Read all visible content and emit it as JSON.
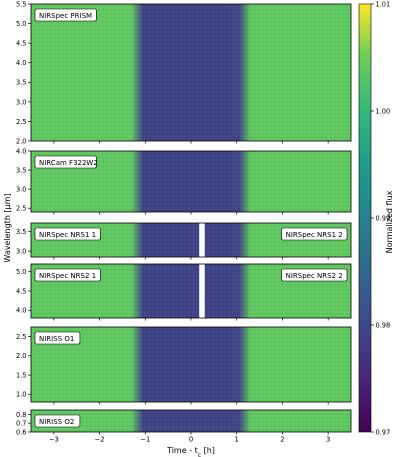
{
  "chart_data": {
    "type": "heatmap",
    "xlabel": "Time - t",
    "xlabel_sub": "c",
    "xlabel_unit": " [h]",
    "ylabel": "Wavelength [μm]",
    "xlim": [
      -3.5,
      3.5
    ],
    "x_ticks": [
      -3,
      -2,
      -1,
      0,
      1,
      2,
      3
    ],
    "transit": {
      "ingress": [
        -1.3,
        -1.05
      ],
      "egress": [
        1.05,
        1.3
      ]
    },
    "colorbar": {
      "label": "Normalized flux",
      "colormap": "viridis",
      "range": [
        0.97,
        1.01
      ],
      "ticks": [
        0.97,
        0.98,
        0.99,
        1.0,
        1.01
      ],
      "tick_labels": [
        "0.97",
        "0.98",
        "0.99",
        "1.00",
        "1.01"
      ],
      "out_of_transit_level": 1.0,
      "in_transit_level": 0.978
    },
    "panels": [
      {
        "id": "prism",
        "labels": [
          "NIRSpec PRISM"
        ],
        "ylim": [
          2.0,
          5.5
        ],
        "y_ticks": [
          2.0,
          2.5,
          3.0,
          3.5,
          4.0,
          4.5,
          5.0,
          5.5
        ],
        "y_tick_labels": [
          "2.0",
          "2.5",
          "3.0",
          "3.5",
          "4.0",
          "4.5",
          "5.0",
          "5.5"
        ]
      },
      {
        "id": "f322w2",
        "labels": [
          "NIRCam F322W2"
        ],
        "ylim": [
          2.4,
          4.0
        ],
        "y_ticks": [
          2.5,
          3.0,
          3.5,
          4.0
        ],
        "y_tick_labels": [
          "2.5",
          "3.0",
          "3.5",
          "4.0"
        ]
      },
      {
        "id": "nrs1",
        "labels": [
          "NIRSpec NRS1 1",
          "NIRSpec NRS1 2"
        ],
        "ylim": [
          2.85,
          3.72
        ],
        "y_ticks": [
          3.0,
          3.5
        ],
        "y_tick_labels": [
          "3.0",
          "3.5"
        ],
        "gap": [
          0.18,
          0.3
        ]
      },
      {
        "id": "nrs2",
        "labels": [
          "NIRSpec NRS2 1",
          "NIRSpec NRS2 2"
        ],
        "ylim": [
          3.8,
          5.2
        ],
        "y_ticks": [
          4.0,
          4.5,
          5.0
        ],
        "y_tick_labels": [
          "4.0",
          "4.5",
          "5.0"
        ],
        "gap": [
          0.18,
          0.3
        ]
      },
      {
        "id": "o1",
        "labels": [
          "NIRISS O1"
        ],
        "ylim": [
          0.8,
          2.75
        ],
        "y_ticks": [
          1.0,
          1.5,
          2.0,
          2.5
        ],
        "y_tick_labels": [
          "1.0",
          "1.5",
          "2.0",
          "2.5"
        ]
      },
      {
        "id": "o2",
        "labels": [
          "NIRISS O2"
        ],
        "ylim": [
          0.6,
          0.85
        ],
        "y_ticks": [
          0.6,
          0.7,
          0.8
        ],
        "y_tick_labels": [
          "0.6",
          "0.7",
          "0.8"
        ]
      }
    ]
  }
}
